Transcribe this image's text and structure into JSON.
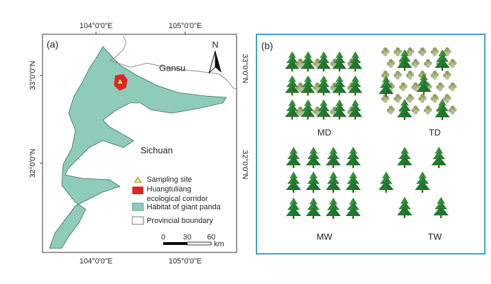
{
  "map": {
    "panel_label": "(a)",
    "top_longitudes": [
      "104°0'0\"E",
      "105°0'0\"E"
    ],
    "bottom_longitudes": [
      "104°0'0\"E",
      "105°0'0\"E"
    ],
    "left_latitudes": [
      "33°0'0\"N",
      "32°0'0\"N"
    ],
    "right_latitudes": [
      "33°0'0\"N",
      "32°0'0\"N"
    ],
    "north_arrow": "N",
    "places": [
      "Gansu",
      "Sichuan"
    ],
    "legend": [
      {
        "lines": [
          "Sampling site"
        ]
      },
      {
        "lines": [
          "Huangtuliang",
          "ecological corridor"
        ]
      },
      {
        "lines": [
          "Habitat of giant panda"
        ]
      },
      {
        "lines": [
          "Provincial boundary"
        ]
      }
    ],
    "scale": {
      "ticks": [
        "0",
        "30",
        "60"
      ],
      "unit": "km"
    }
  },
  "diagram": {
    "panel_label": "(b)",
    "labels": [
      "MD",
      "TD",
      "MW",
      "TW"
    ]
  }
}
